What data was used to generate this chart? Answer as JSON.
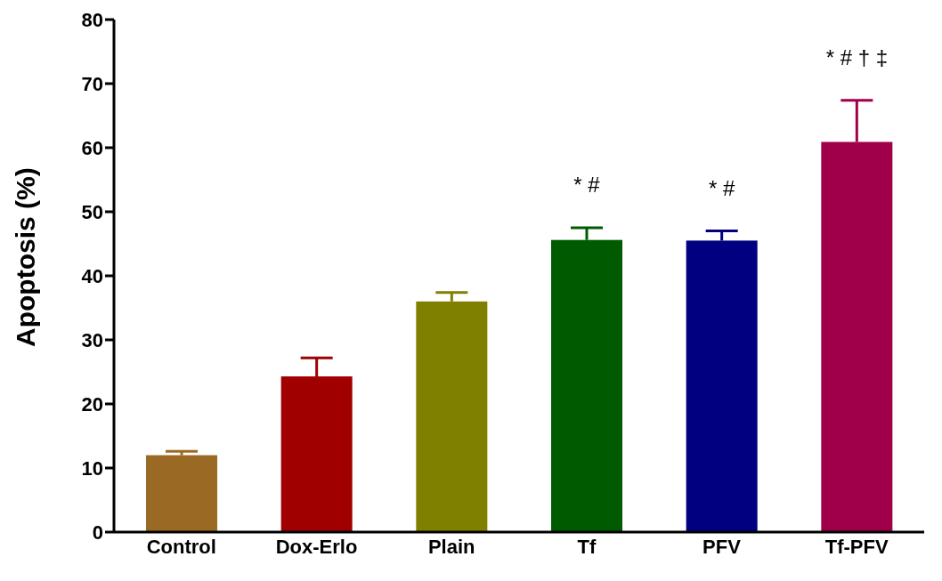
{
  "chart_data": {
    "type": "bar",
    "ylabel": "Apoptosis (%)",
    "categories": [
      "Control",
      "Dox-Erlo",
      "Plain",
      "Tf",
      "PFV",
      "Tf-PFV"
    ],
    "values": [
      12,
      24.3,
      36,
      45.6,
      45.5,
      60.9
    ],
    "errors": [
      [
        12,
        12.6
      ],
      [
        24.3,
        27.2
      ],
      [
        36,
        37.4
      ],
      [
        45.6,
        47.5
      ],
      [
        45.5,
        47
      ],
      [
        60.9,
        67.4
      ]
    ],
    "colors": [
      "#9a6a24",
      "#a00000",
      "#808000",
      "#005a00",
      "#000080",
      "#a0004a"
    ],
    "ylim": [
      0,
      80
    ],
    "yticks": [
      0,
      10,
      20,
      30,
      40,
      50,
      60,
      70,
      80
    ],
    "grid": false,
    "legend": false,
    "annotations": [
      "* #",
      "* #",
      "* # † ‡"
    ]
  }
}
